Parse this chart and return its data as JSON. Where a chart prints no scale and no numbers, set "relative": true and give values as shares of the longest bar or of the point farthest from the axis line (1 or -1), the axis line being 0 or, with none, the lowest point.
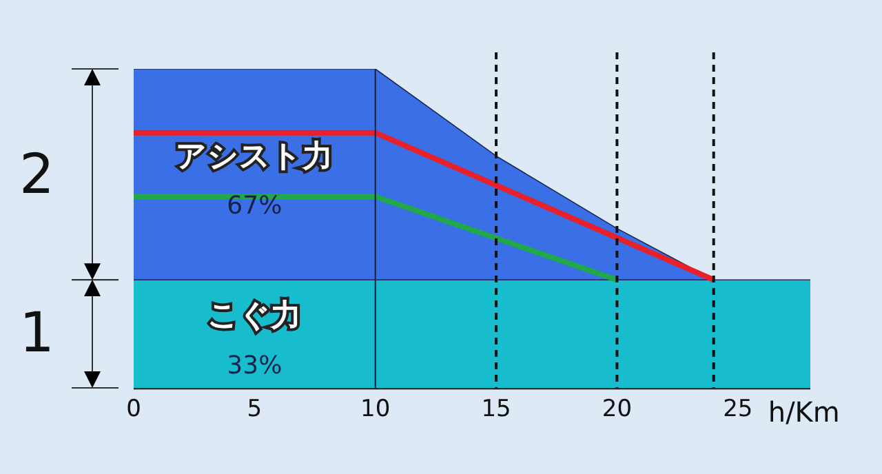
{
  "chart_data": {
    "type": "area",
    "relative": true,
    "xlabel": "h/Km",
    "xlim": [
      0,
      28
    ],
    "xticks": [
      0,
      5,
      10,
      15,
      20,
      25
    ],
    "grid": false,
    "legend": false,
    "series": [
      {
        "name": "アシスト力",
        "color": "#3a6fe6",
        "x": [
          0,
          10,
          15,
          20,
          24
        ],
        "values": [
          1,
          1,
          0.727,
          0.5,
          0.339
        ]
      },
      {
        "name": "こぐ力",
        "color": "#17bccd",
        "x": [
          0,
          28
        ],
        "values": [
          0.339,
          0.339
        ]
      },
      {
        "type": "line",
        "color": "#e8202a",
        "x": [
          0,
          10,
          24
        ],
        "values": [
          0.8,
          0.8,
          0.339
        ]
      },
      {
        "type": "line",
        "color": "#21a84a",
        "x": [
          0,
          10,
          20
        ],
        "values": [
          0.6,
          0.6,
          0.339
        ]
      }
    ],
    "ref_lines": [
      {
        "axis": "x",
        "value": 10,
        "line_style": "solid",
        "color": "#1a2040"
      },
      {
        "axis": "x",
        "value": 15,
        "line_style": "dashed",
        "color": "#111111"
      },
      {
        "axis": "x",
        "value": 20,
        "line_style": "dashed",
        "color": "#111111"
      },
      {
        "axis": "x",
        "value": 24,
        "line_style": "dashed",
        "color": "#111111"
      }
    ],
    "annotations": [
      "67%",
      "33%",
      "2",
      "1"
    ]
  }
}
